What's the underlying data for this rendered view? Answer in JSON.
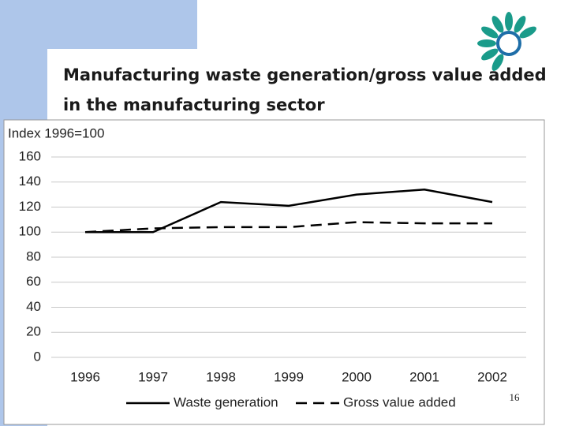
{
  "page_number": "16",
  "chart_data": {
    "type": "line",
    "title": "Manufacturing waste generation/gross value added in the manufacturing sector",
    "ylabel": "Index 1996=100",
    "categories": [
      "1996",
      "1997",
      "1998",
      "1999",
      "2000",
      "2001",
      "2002"
    ],
    "series": [
      {
        "name": "Waste generation",
        "color": "#000000",
        "dash": "solid",
        "values": [
          100,
          100,
          124,
          121,
          130,
          134,
          124
        ]
      },
      {
        "name": "Gross value added",
        "color": "#000000",
        "dash": "dashed",
        "values": [
          100,
          103,
          104,
          104,
          108,
          107,
          107
        ]
      }
    ],
    "ylim": [
      0,
      160
    ],
    "yticks": [
      0,
      20,
      40,
      60,
      80,
      100,
      120,
      140,
      160
    ],
    "grid": true,
    "legend": "bottom"
  }
}
